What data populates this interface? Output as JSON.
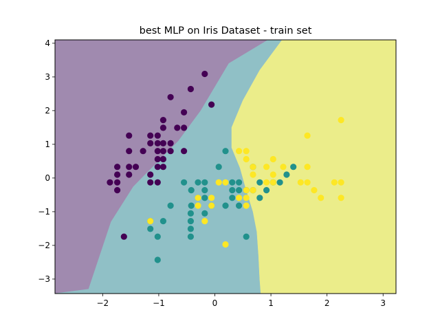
{
  "chart_data": {
    "type": "scatter",
    "title": "best MLP on Iris Dataset - train set",
    "xlabel": "",
    "ylabel": "",
    "xlim": [
      -2.85,
      3.23
    ],
    "ylim": [
      -3.43,
      4.1
    ],
    "x_ticks": [
      -2,
      -1,
      0,
      1,
      2,
      3
    ],
    "y_ticks": [
      -3,
      -2,
      -1,
      0,
      1,
      2,
      3,
      4
    ],
    "x_tick_labels": [
      "−2",
      "−1",
      "0",
      "1",
      "2",
      "3"
    ],
    "y_tick_labels": [
      "−3",
      "−2",
      "−1",
      "0",
      "1",
      "2",
      "3",
      "4"
    ],
    "grid": false,
    "legend": "none",
    "colors": {
      "class_0": "#440154",
      "class_1": "#21918c",
      "class_2": "#fde725",
      "region_0": "#a08aaf",
      "region_1": "#90c0c6",
      "region_2": "#ebed8a"
    },
    "decision_regions": {
      "class_0": [
        [
          -2.85,
          4.1
        ],
        [
          0.95,
          4.1
        ],
        [
          0.25,
          3.4
        ],
        [
          -0.25,
          2.0
        ],
        [
          -0.65,
          1.1
        ],
        [
          -1.45,
          -0.25
        ],
        [
          -1.85,
          -1.3
        ],
        [
          -2.25,
          -3.3
        ],
        [
          -2.85,
          -3.43
        ]
      ],
      "class_1": [
        [
          0.95,
          4.1
        ],
        [
          1.2,
          4.1
        ],
        [
          0.8,
          3.2
        ],
        [
          0.5,
          2.3
        ],
        [
          0.3,
          1.5
        ],
        [
          0.3,
          0.9
        ],
        [
          0.45,
          0.3
        ],
        [
          0.55,
          -0.3
        ],
        [
          0.68,
          -1.0
        ],
        [
          0.75,
          -1.6
        ],
        [
          0.78,
          -2.3
        ],
        [
          0.8,
          -3.0
        ],
        [
          0.82,
          -3.43
        ],
        [
          -2.85,
          -3.43
        ],
        [
          -2.25,
          -3.3
        ],
        [
          -1.85,
          -1.3
        ],
        [
          -1.45,
          -0.25
        ],
        [
          -0.65,
          1.1
        ],
        [
          -0.25,
          2.0
        ],
        [
          0.25,
          3.4
        ]
      ],
      "class_2": [
        [
          1.2,
          4.1
        ],
        [
          3.23,
          4.1
        ],
        [
          3.23,
          -3.43
        ],
        [
          0.82,
          -3.43
        ],
        [
          0.8,
          -3.0
        ],
        [
          0.78,
          -2.3
        ],
        [
          0.75,
          -1.6
        ],
        [
          0.68,
          -1.0
        ],
        [
          0.55,
          -0.3
        ],
        [
          0.45,
          0.3
        ],
        [
          0.3,
          0.9
        ],
        [
          0.3,
          1.5
        ],
        [
          0.5,
          2.3
        ],
        [
          0.8,
          3.2
        ]
      ]
    },
    "series": [
      {
        "class": 0,
        "points": [
          [
            -0.18,
            3.09
          ],
          [
            -0.43,
            2.64
          ],
          [
            -0.06,
            2.18
          ],
          [
            -0.79,
            2.4
          ],
          [
            -0.55,
            1.95
          ],
          [
            -0.92,
            1.72
          ],
          [
            -0.67,
            1.49
          ],
          [
            -0.55,
            1.49
          ],
          [
            -0.92,
            1.49
          ],
          [
            -1.53,
            1.26
          ],
          [
            -1.15,
            1.26
          ],
          [
            -1.02,
            1.26
          ],
          [
            -1.02,
            1.03
          ],
          [
            -1.15,
            1.03
          ],
          [
            -0.92,
            1.03
          ],
          [
            -0.79,
            1.03
          ],
          [
            -0.92,
            0.8
          ],
          [
            -1.53,
            0.8
          ],
          [
            -1.28,
            0.8
          ],
          [
            -1.02,
            0.8
          ],
          [
            -0.79,
            0.8
          ],
          [
            -0.55,
            0.8
          ],
          [
            -1.02,
            0.56
          ],
          [
            -0.92,
            0.56
          ],
          [
            -1.02,
            0.33
          ],
          [
            -0.92,
            0.33
          ],
          [
            -1.53,
            0.33
          ],
          [
            -1.41,
            0.33
          ],
          [
            -1.74,
            0.33
          ],
          [
            -1.15,
            0.1
          ],
          [
            -1.53,
            0.1
          ],
          [
            -1.74,
            0.1
          ],
          [
            -1.87,
            -0.13
          ],
          [
            -1.74,
            -0.13
          ],
          [
            -1.15,
            -0.13
          ],
          [
            -1.02,
            -0.13
          ],
          [
            -1.74,
            -0.36
          ],
          [
            -1.62,
            -1.74
          ]
        ]
      },
      {
        "class": 1,
        "points": [
          [
            0.19,
            0.8
          ],
          [
            0.07,
            0.33
          ],
          [
            0.31,
            -0.13
          ],
          [
            0.43,
            -0.13
          ],
          [
            0.31,
            -0.36
          ],
          [
            0.43,
            -0.36
          ],
          [
            0.56,
            -0.36
          ],
          [
            0.68,
            -0.36
          ],
          [
            0.92,
            -0.36
          ],
          [
            0.8,
            -0.13
          ],
          [
            1.04,
            -0.13
          ],
          [
            1.16,
            -0.13
          ],
          [
            1.28,
            0.1
          ],
          [
            1.4,
            0.33
          ],
          [
            0.68,
            0.33
          ],
          [
            0.8,
            -0.59
          ],
          [
            -0.55,
            -0.13
          ],
          [
            -0.3,
            -0.13
          ],
          [
            -0.18,
            -0.13
          ],
          [
            -0.18,
            -0.36
          ],
          [
            -0.42,
            -0.36
          ],
          [
            -0.3,
            -0.59
          ],
          [
            -0.18,
            -0.59
          ],
          [
            0.31,
            -0.59
          ],
          [
            -0.42,
            -0.82
          ],
          [
            -0.79,
            -0.82
          ],
          [
            0.19,
            -0.82
          ],
          [
            -0.06,
            -0.82
          ],
          [
            0.43,
            -0.82
          ],
          [
            -1.15,
            -1.28
          ],
          [
            -0.92,
            -1.28
          ],
          [
            -0.43,
            -1.05
          ],
          [
            -0.18,
            -1.05
          ],
          [
            -0.43,
            -1.28
          ],
          [
            -1.15,
            -1.51
          ],
          [
            -0.43,
            -1.51
          ],
          [
            -1.02,
            -1.74
          ],
          [
            -0.43,
            -1.74
          ],
          [
            0.56,
            -1.74
          ],
          [
            -1.02,
            -2.43
          ]
        ]
      },
      {
        "class": 2,
        "points": [
          [
            2.25,
            1.72
          ],
          [
            1.65,
            1.26
          ],
          [
            0.43,
            0.8
          ],
          [
            0.56,
            0.8
          ],
          [
            0.56,
            0.56
          ],
          [
            1.04,
            0.56
          ],
          [
            0.68,
            0.33
          ],
          [
            0.92,
            0.33
          ],
          [
            1.22,
            0.33
          ],
          [
            1.65,
            0.33
          ],
          [
            0.68,
            0.1
          ],
          [
            1.04,
            0.1
          ],
          [
            0.19,
            -0.13
          ],
          [
            0.92,
            -0.13
          ],
          [
            1.04,
            -0.13
          ],
          [
            1.53,
            -0.13
          ],
          [
            1.65,
            -0.13
          ],
          [
            2.13,
            -0.13
          ],
          [
            2.25,
            -0.13
          ],
          [
            0.07,
            -0.13
          ],
          [
            0.56,
            -0.36
          ],
          [
            0.68,
            -0.36
          ],
          [
            1.77,
            -0.36
          ],
          [
            0.43,
            -0.59
          ],
          [
            -0.3,
            -0.59
          ],
          [
            -0.06,
            -0.59
          ],
          [
            0.56,
            -0.59
          ],
          [
            1.89,
            -0.59
          ],
          [
            2.25,
            -0.59
          ],
          [
            -0.3,
            -0.82
          ],
          [
            -0.06,
            -0.82
          ],
          [
            0.56,
            -0.82
          ],
          [
            -1.15,
            -1.28
          ],
          [
            -0.18,
            -1.28
          ],
          [
            0.19,
            -1.97
          ]
        ]
      }
    ]
  }
}
